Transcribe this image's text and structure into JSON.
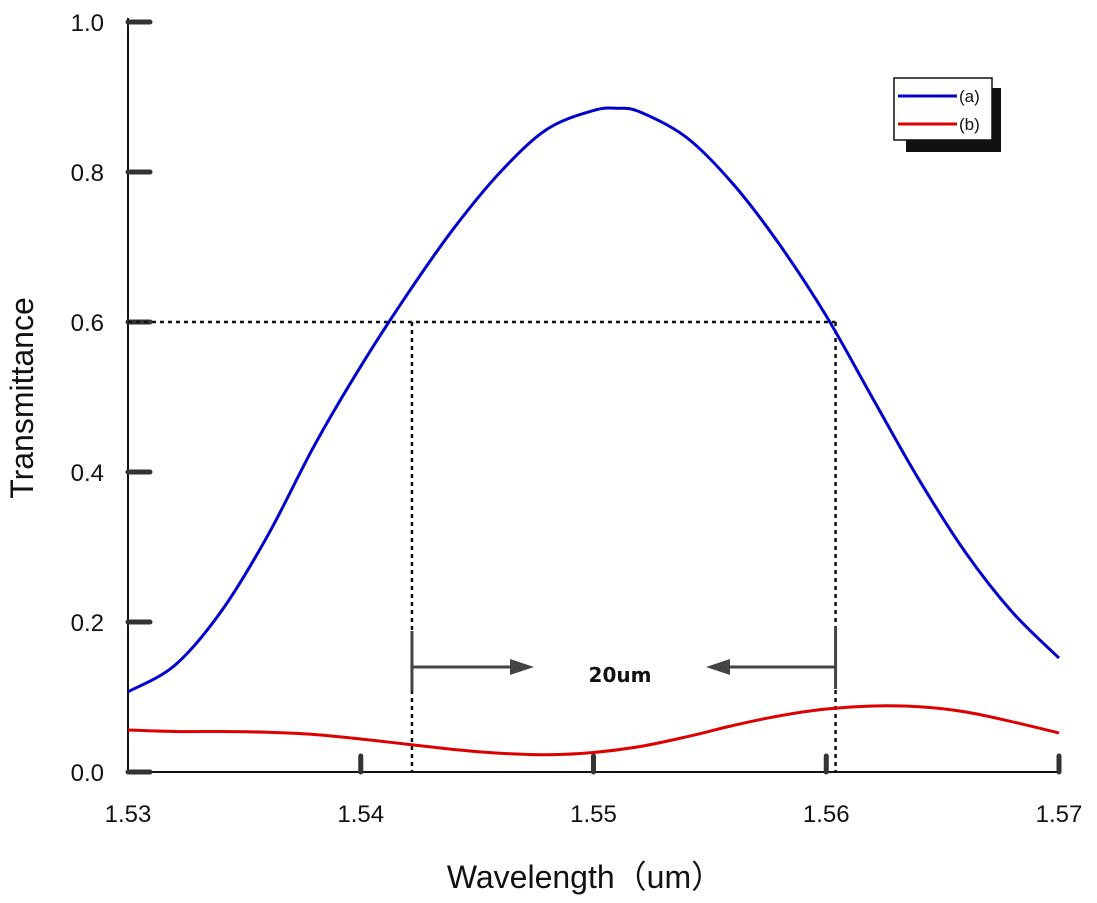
{
  "chart_data": {
    "type": "line",
    "xlabel": "Wavelength（um）",
    "ylabel": "Transmittance",
    "xlim": [
      1.53,
      1.57
    ],
    "ylim": [
      0.0,
      1.0
    ],
    "x_ticks": [
      1.53,
      1.54,
      1.55,
      1.56,
      1.57
    ],
    "x_tick_labels": [
      "1.53",
      "1.54",
      "1.55",
      "1.56",
      "1.57"
    ],
    "y_ticks": [
      0.0,
      0.2,
      0.4,
      0.6,
      0.8,
      1.0
    ],
    "y_tick_labels": [
      "0.0",
      "0.2",
      "0.4",
      "0.6",
      "0.8",
      "1.0"
    ],
    "grid": false,
    "legend": {
      "placement": "top-right"
    },
    "series": [
      {
        "name": "(a)",
        "color": "#0000cc",
        "x": [
          1.53,
          1.532,
          1.534,
          1.536,
          1.538,
          1.54,
          1.542,
          1.544,
          1.546,
          1.548,
          1.55,
          1.551,
          1.552,
          1.554,
          1.556,
          1.558,
          1.56,
          1.562,
          1.564,
          1.566,
          1.568,
          1.57
        ],
        "y": [
          0.107,
          0.142,
          0.214,
          0.315,
          0.435,
          0.541,
          0.637,
          0.725,
          0.8,
          0.857,
          0.882,
          0.885,
          0.88,
          0.846,
          0.784,
          0.703,
          0.608,
          0.498,
          0.389,
          0.292,
          0.213,
          0.152
        ]
      },
      {
        "name": "(b)",
        "color": "#dd0000",
        "x": [
          1.53,
          1.532,
          1.534,
          1.536,
          1.538,
          1.54,
          1.542,
          1.544,
          1.546,
          1.548,
          1.55,
          1.552,
          1.554,
          1.556,
          1.558,
          1.56,
          1.562,
          1.564,
          1.566,
          1.568,
          1.57
        ],
        "y": [
          0.056,
          0.054,
          0.054,
          0.053,
          0.05,
          0.044,
          0.037,
          0.03,
          0.025,
          0.023,
          0.026,
          0.034,
          0.047,
          0.062,
          0.075,
          0.084,
          0.088,
          0.087,
          0.08,
          0.067,
          0.052
        ]
      }
    ],
    "annotations": {
      "threshold_y": 0.6,
      "left_x": 1.5422,
      "right_x": 1.5604,
      "arrow_y": 0.14,
      "label": "20um"
    }
  }
}
